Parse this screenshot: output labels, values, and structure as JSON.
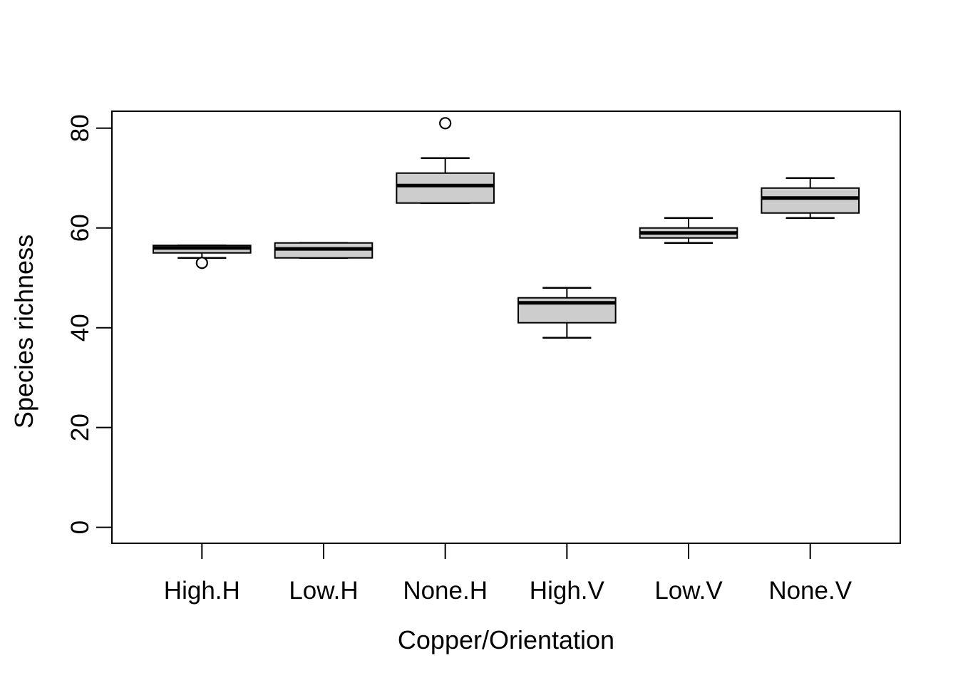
{
  "page": {
    "background": "#FFFFFF"
  },
  "chart_data": {
    "type": "boxplot",
    "title": "",
    "xlabel": "Copper/Orientation",
    "ylabel": "Species richness",
    "categories": [
      "High.H",
      "Low.H",
      "None.H",
      "High.V",
      "Low.V",
      "None.V"
    ],
    "y_ticks": [
      0,
      20,
      40,
      60,
      80
    ],
    "axis": {
      "y_range": [
        -3.2,
        83.4
      ],
      "x_range": [
        0.26,
        6.74
      ],
      "grid": false,
      "legend": "none"
    },
    "boxes": [
      {
        "category": "High.H",
        "lower_whisker": 54,
        "q1": 55,
        "median": 56,
        "q3": 56.5,
        "upper_whisker": 56.5,
        "outliers": [
          53
        ]
      },
      {
        "category": "Low.H",
        "lower_whisker": 54,
        "q1": 54,
        "median": 55.8,
        "q3": 57,
        "upper_whisker": 57,
        "outliers": []
      },
      {
        "category": "None.H",
        "lower_whisker": 65,
        "q1": 65,
        "median": 68.5,
        "q3": 71,
        "upper_whisker": 74,
        "outliers": [
          81
        ]
      },
      {
        "category": "High.V",
        "lower_whisker": 38,
        "q1": 41,
        "median": 45,
        "q3": 46,
        "upper_whisker": 48,
        "outliers": []
      },
      {
        "category": "Low.V",
        "lower_whisker": 57,
        "q1": 58,
        "median": 59,
        "q3": 60,
        "upper_whisker": 62,
        "outliers": []
      },
      {
        "category": "None.V",
        "lower_whisker": 62,
        "q1": 63,
        "median": 66,
        "q3": 68,
        "upper_whisker": 70,
        "outliers": []
      }
    ],
    "colors": {
      "box_fill": "#CDCDCD",
      "stroke": "#000000",
      "outlier_fill": "#FFFFFF",
      "background": "#FFFFFF"
    }
  }
}
